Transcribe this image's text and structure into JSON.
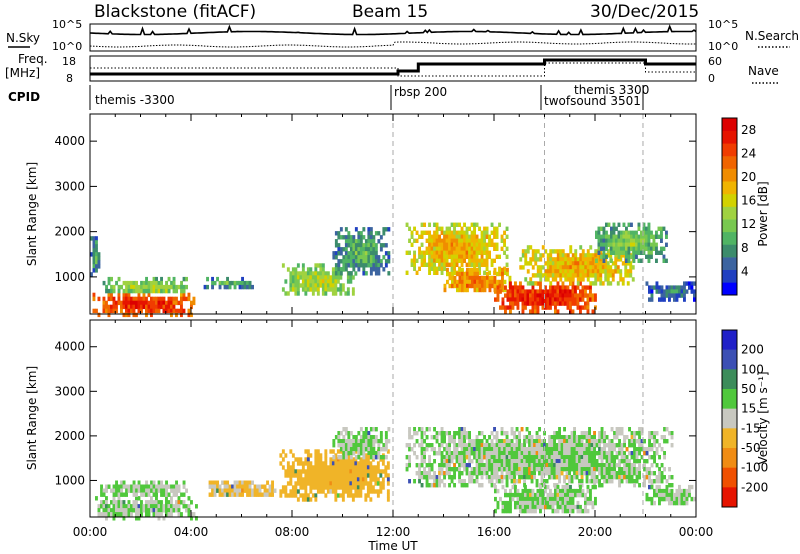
{
  "header": {
    "station": "Blackstone (fitACF)",
    "beam": "Beam 15",
    "date": "30/Dec/2015"
  },
  "panels": {
    "nsky_label": "N.Sky",
    "nsearch_label": "N.Search",
    "nsky_ticks": [
      "10^5",
      "10^0"
    ],
    "nsearch_ticks": [
      "10^5",
      "10^0"
    ],
    "freq_label": "Freq.",
    "freq_unit": "[MHz]",
    "freq_ticks": [
      "18",
      "8"
    ],
    "nave_label": "Nave",
    "nave_ticks": [
      "60",
      "0"
    ],
    "cpid_label": "CPID"
  },
  "cpid_segments": [
    {
      "name": "themis -3300",
      "start_h": 0.0
    },
    {
      "name": "rbsp 200",
      "start_h": 12.0
    },
    {
      "name": "themis 3300",
      "start_h": 18.0
    },
    {
      "name": "twofsound 3501",
      "start_h": 18.0
    }
  ],
  "chart_data": [
    {
      "type": "heatmap",
      "name": "power",
      "ylabel": "Slant Range [km]",
      "xlabel": "Time UT",
      "x_ticks": [
        "00:00",
        "04:00",
        "08:00",
        "12:00",
        "16:00",
        "20:00",
        "00:00"
      ],
      "y_ticks": [
        "1000",
        "2000",
        "3000",
        "4000"
      ],
      "xlim": [
        0,
        24
      ],
      "ylim": [
        180,
        4600
      ],
      "colorbar": {
        "label": "Power [dB]",
        "ticks": [
          "4",
          "8",
          "12",
          "16",
          "20",
          "24",
          "28"
        ],
        "range": [
          0,
          30
        ],
        "colors": [
          "#0000ff",
          "#2040c0",
          "#3c64a0",
          "#3c8c6c",
          "#50b464",
          "#78c850",
          "#a0d240",
          "#d2d200",
          "#f0b400",
          "#f08c00",
          "#f06400",
          "#f03c00",
          "#e61400",
          "#dc0000"
        ]
      },
      "regions": [
        {
          "t0": 0.1,
          "t1": 4.2,
          "r0": 200,
          "r1": 650,
          "p": 24
        },
        {
          "t0": 0.4,
          "t1": 3.8,
          "r0": 650,
          "r1": 1000,
          "p": 12
        },
        {
          "t0": 4.5,
          "t1": 6.5,
          "r0": 800,
          "r1": 1000,
          "p": 8
        },
        {
          "t0": 7.6,
          "t1": 10.5,
          "r0": 600,
          "r1": 1300,
          "p": 13
        },
        {
          "t0": 9.6,
          "t1": 11.8,
          "r0": 1100,
          "r1": 2100,
          "p": 8
        },
        {
          "t0": 12.5,
          "t1": 16.5,
          "r0": 1100,
          "r1": 2200,
          "p": 17
        },
        {
          "t0": 14.0,
          "t1": 16.6,
          "r0": 700,
          "r1": 1200,
          "p": 20
        },
        {
          "t0": 16.0,
          "t1": 20.0,
          "r0": 280,
          "r1": 900,
          "p": 25
        },
        {
          "t0": 17.0,
          "t1": 21.5,
          "r0": 900,
          "r1": 1700,
          "p": 17
        },
        {
          "t0": 20.0,
          "t1": 22.8,
          "r0": 1400,
          "r1": 2200,
          "p": 10
        },
        {
          "t0": 22.0,
          "t1": 23.9,
          "r0": 500,
          "r1": 900,
          "p": 5
        },
        {
          "t0": 0.0,
          "t1": 0.35,
          "r0": 1100,
          "r1": 1900,
          "p": 7
        }
      ]
    },
    {
      "type": "heatmap",
      "name": "velocity",
      "ylabel": "Slant Range [km]",
      "xlabel": "Time UT",
      "x_ticks": [
        "00:00",
        "04:00",
        "08:00",
        "12:00",
        "16:00",
        "20:00",
        "00:00"
      ],
      "y_ticks": [
        "1000",
        "2000",
        "3000",
        "4000"
      ],
      "xlim": [
        0,
        24
      ],
      "ylim": [
        180,
        4600
      ],
      "colorbar": {
        "label": "Velocity [m s⁻¹]",
        "ticks": [
          "200",
          "100",
          "50",
          "15",
          "-15",
          "-50",
          "-100",
          "-200"
        ],
        "range": [
          -250,
          250
        ],
        "colors": [
          "#2020c8",
          "#3c50b4",
          "#3c8c5a",
          "#50c83c",
          "#c8c8c0",
          "#f0b428",
          "#f08c14",
          "#f05000",
          "#e61400"
        ]
      },
      "regions": [
        {
          "t0": 0.1,
          "t1": 4.2,
          "r0": 200,
          "r1": 650,
          "v": 0
        },
        {
          "t0": 0.4,
          "t1": 3.8,
          "r0": 650,
          "r1": 1000,
          "v": 0
        },
        {
          "t0": 4.5,
          "t1": 7.3,
          "r0": 650,
          "r1": 1000,
          "v": -40
        },
        {
          "t0": 7.5,
          "t1": 11.8,
          "r0": 600,
          "r1": 1700,
          "v": -55
        },
        {
          "t0": 9.6,
          "t1": 11.8,
          "r0": 1500,
          "r1": 2200,
          "v": 0
        },
        {
          "t0": 12.5,
          "t1": 23.0,
          "r0": 900,
          "r1": 2200,
          "v": 0
        },
        {
          "t0": 16.0,
          "t1": 20.0,
          "r0": 280,
          "r1": 900,
          "v": 0
        },
        {
          "t0": 22.0,
          "t1": 23.9,
          "r0": 500,
          "r1": 900,
          "v": 0
        }
      ]
    }
  ]
}
